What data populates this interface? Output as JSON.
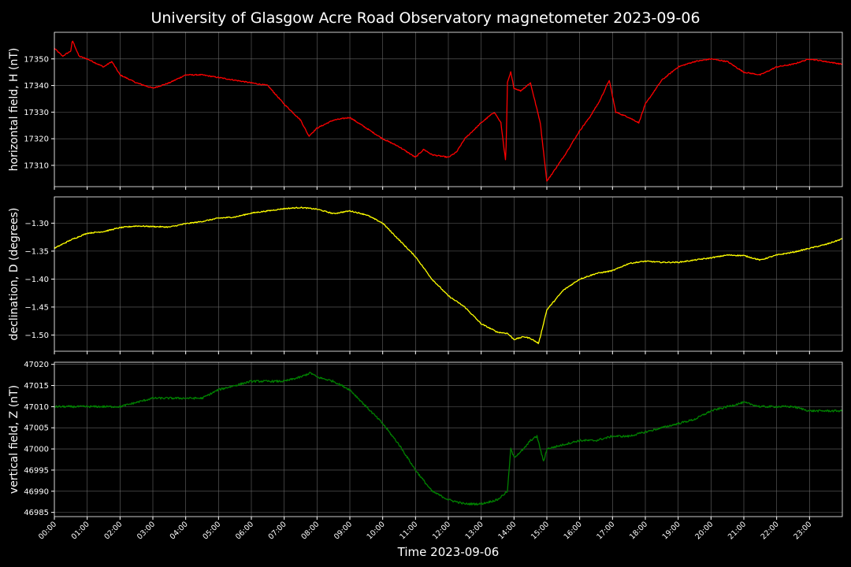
{
  "figure": {
    "title": "University of Glasgow Acre Road Observatory magnetometer 2023-09-06",
    "xlabel": "Time 2023-09-06",
    "x_tick_labels": [
      "00:00",
      "01:00",
      "02:00",
      "03:00",
      "04:00",
      "05:00",
      "06:00",
      "07:00",
      "08:00",
      "09:00",
      "10:00",
      "11:00",
      "12:00",
      "13:00",
      "14:00",
      "15:00",
      "16:00",
      "17:00",
      "18:00",
      "19:00",
      "20:00",
      "21:00",
      "22:00",
      "23:00"
    ],
    "background": "#000000",
    "grid_color": "#666666",
    "axis_color": "#ffffff"
  },
  "chart_data": [
    {
      "type": "line",
      "ylabel": "horizontal field, H (nT)",
      "color": "#ff0000",
      "xlim": [
        0,
        24
      ],
      "ylim": [
        17302,
        17360
      ],
      "yticks": [
        17310,
        17320,
        17330,
        17340,
        17350
      ],
      "ytick_labels": [
        "17310",
        "17320",
        "17330",
        "17340",
        "17350"
      ],
      "grid": true,
      "x": [
        0,
        0.25,
        0.5,
        0.55,
        0.75,
        1.0,
        1.5,
        1.75,
        2.0,
        2.5,
        3.0,
        3.5,
        4.0,
        4.5,
        5.0,
        5.5,
        6.0,
        6.5,
        7.0,
        7.5,
        7.75,
        8.0,
        8.5,
        9.0,
        9.5,
        10.0,
        10.5,
        11.0,
        11.25,
        11.5,
        12.0,
        12.25,
        12.5,
        13.0,
        13.4,
        13.6,
        13.75,
        13.8,
        13.9,
        14.0,
        14.2,
        14.5,
        14.8,
        15.0,
        15.5,
        16.0,
        16.3,
        16.6,
        16.9,
        17.1,
        17.5,
        17.8,
        18.0,
        18.5,
        19.0,
        19.5,
        20.0,
        20.5,
        21.0,
        21.5,
        22.0,
        22.5,
        23.0,
        23.5,
        24.0
      ],
      "y": [
        17354,
        17351,
        17353,
        17357,
        17351,
        17350,
        17347,
        17349,
        17344,
        17341,
        17339,
        17341,
        17344,
        17344,
        17343,
        17342,
        17341,
        17340,
        17333,
        17327,
        17321,
        17324,
        17327,
        17328,
        17324,
        17320,
        17317,
        17313,
        17316,
        17314,
        17313,
        17315,
        17320,
        17326,
        17330,
        17326,
        17311,
        17341,
        17345,
        17339,
        17338,
        17341,
        17326,
        17304,
        17313,
        17323,
        17328,
        17334,
        17342,
        17330,
        17328,
        17326,
        17333,
        17342,
        17347,
        17349,
        17350,
        17349,
        17345,
        17344,
        17347,
        17348,
        17350,
        17349,
        17348
      ]
    },
    {
      "type": "line",
      "ylabel": "declination, D (degrees)",
      "color": "#ffff00",
      "xlim": [
        0,
        24
      ],
      "ylim": [
        -1.529,
        -1.253
      ],
      "yticks": [
        -1.3,
        -1.35,
        -1.4,
        -1.45,
        -1.5
      ],
      "ytick_labels": [
        "−1.30",
        "−1.35",
        "−1.40",
        "−1.45",
        "−1.50"
      ],
      "grid": true,
      "x": [
        0,
        0.5,
        1.0,
        1.5,
        2.0,
        2.5,
        3.0,
        3.5,
        4.0,
        4.5,
        5.0,
        5.5,
        6.0,
        6.5,
        7.0,
        7.5,
        8.0,
        8.5,
        9.0,
        9.5,
        10.0,
        10.5,
        11.0,
        11.5,
        12.0,
        12.5,
        13.0,
        13.5,
        13.8,
        14.0,
        14.3,
        14.5,
        14.75,
        15.0,
        15.5,
        16.0,
        16.5,
        17.0,
        17.5,
        18.0,
        18.5,
        19.0,
        19.5,
        20.0,
        20.5,
        21.0,
        21.5,
        22.0,
        22.5,
        23.0,
        23.5,
        24.0
      ],
      "y": [
        -1.345,
        -1.33,
        -1.318,
        -1.315,
        -1.308,
        -1.305,
        -1.306,
        -1.307,
        -1.301,
        -1.297,
        -1.291,
        -1.289,
        -1.282,
        -1.278,
        -1.274,
        -1.272,
        -1.275,
        -1.283,
        -1.278,
        -1.285,
        -1.3,
        -1.33,
        -1.36,
        -1.4,
        -1.43,
        -1.45,
        -1.48,
        -1.495,
        -1.497,
        -1.508,
        -1.503,
        -1.506,
        -1.515,
        -1.455,
        -1.42,
        -1.4,
        -1.39,
        -1.385,
        -1.372,
        -1.368,
        -1.37,
        -1.37,
        -1.366,
        -1.362,
        -1.357,
        -1.358,
        -1.366,
        -1.357,
        -1.352,
        -1.345,
        -1.338,
        -1.328
      ]
    },
    {
      "type": "line",
      "ylabel": "vertical field, Z (nT)",
      "color": "#008000",
      "xlim": [
        0,
        24
      ],
      "ylim": [
        46984,
        47020.5
      ],
      "yticks": [
        46985,
        46990,
        46995,
        47000,
        47005,
        47010,
        47015,
        47020
      ],
      "ytick_labels": [
        "46985",
        "46990",
        "46995",
        "47000",
        "47005",
        "47010",
        "47015",
        "47020"
      ],
      "grid": true,
      "x": [
        0,
        0.5,
        1.0,
        1.5,
        2.0,
        2.5,
        3.0,
        3.5,
        4.0,
        4.5,
        5.0,
        5.5,
        6.0,
        6.5,
        7.0,
        7.5,
        7.8,
        8.0,
        8.5,
        9.0,
        9.5,
        10.0,
        10.5,
        11.0,
        11.5,
        12.0,
        12.5,
        13.0,
        13.5,
        13.8,
        13.9,
        14.0,
        14.3,
        14.5,
        14.7,
        14.9,
        15.0,
        15.5,
        16.0,
        16.5,
        17.0,
        17.5,
        18.0,
        18.5,
        19.0,
        19.5,
        20.0,
        20.5,
        21.0,
        21.5,
        22.0,
        22.5,
        23.0,
        23.5,
        24.0
      ],
      "y": [
        47010,
        47010,
        47010,
        47010,
        47010,
        47011,
        47012,
        47012,
        47012,
        47012,
        47014,
        47015,
        47016,
        47016,
        47016,
        47017,
        47018,
        47017,
        47016,
        47014,
        47010,
        47006,
        47001,
        46995,
        46990,
        46988,
        46987,
        46987,
        46988,
        46990,
        47000,
        46998,
        47000,
        47002,
        47003,
        46997,
        47000,
        47001,
        47002,
        47002,
        47003,
        47003,
        47004,
        47005,
        47006,
        47007,
        47009,
        47010,
        47011,
        47010,
        47010,
        47010,
        47009,
        47009,
        47009
      ]
    }
  ]
}
